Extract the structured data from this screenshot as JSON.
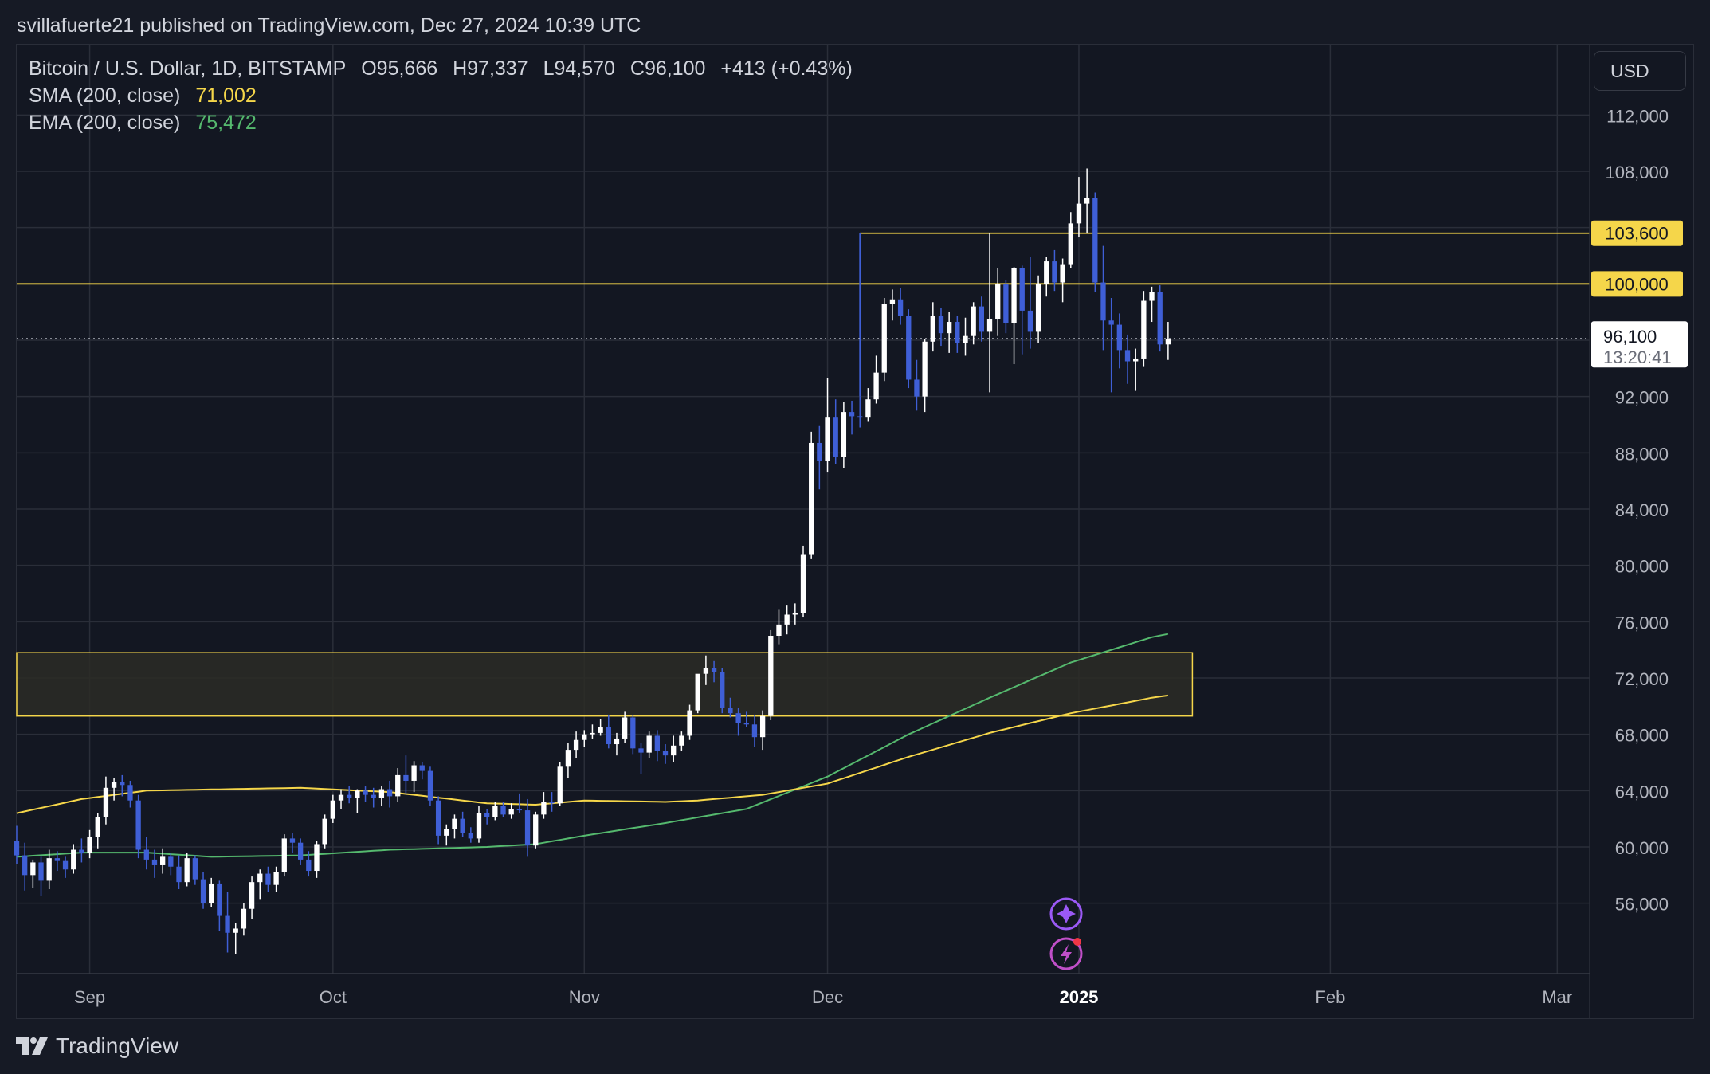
{
  "header": {
    "publisher_line": "svillafuerte21 published on TradingView.com, Dec 27, 2024 10:39 UTC"
  },
  "legend": {
    "symbol": "Bitcoin / U.S. Dollar, 1D, BITSTAMP",
    "open": "O95,666",
    "high": "H97,337",
    "low": "L94,570",
    "close": "C96,100",
    "change": "+413 (+0.43%)",
    "sma_label": "SMA (200, close)",
    "sma_value": "71,002",
    "ema_label": "EMA (200, close)",
    "ema_value": "75,472"
  },
  "currency_button": "USD",
  "price_axis": {
    "ticks": [
      "112,000",
      "108,000",
      "103,600",
      "100,000",
      "96,100",
      "92,000",
      "88,000",
      "84,000",
      "80,000",
      "76,000",
      "72,000",
      "68,000",
      "64,000",
      "60,000",
      "56,000"
    ],
    "tick_values": [
      112000,
      108000,
      104000,
      100000,
      96000,
      92000,
      88000,
      84000,
      80000,
      76000,
      72000,
      68000,
      64000,
      60000,
      56000
    ],
    "current_price_label": "96,100",
    "countdown": "13:20:41",
    "level_labels": [
      "103,600",
      "100,000"
    ]
  },
  "time_axis": {
    "labels": [
      "Sep",
      "Oct",
      "Nov",
      "Dec",
      "2025",
      "Feb",
      "Mar"
    ]
  },
  "colors": {
    "background": "#131722",
    "up_candle": "#ffffff",
    "down_candle": "#3f5fd6",
    "sma": "#f5d64a",
    "ema": "#55b96e",
    "level_line": "#f5d64a",
    "zone_fill": "#2b2b26",
    "grid": "#2a2e39"
  },
  "chart_data": {
    "type": "candlestick",
    "title": "Bitcoin / U.S. Dollar, 1D, BITSTAMP",
    "timeframe": "1D",
    "first_date": "2024-08-23",
    "last_date": "2024-12-27",
    "y_range": [
      51000,
      117000
    ],
    "x_range": [
      "2024-08-23",
      "2025-03-05"
    ],
    "levels": [
      103600,
      100000
    ],
    "current_price": 96100,
    "zone": {
      "low": 69300,
      "high": 73800,
      "until": "2025-01-15"
    },
    "ohlc": [
      [
        60400,
        61500,
        58800,
        59400
      ],
      [
        59400,
        60300,
        56900,
        58000
      ],
      [
        58000,
        59100,
        57100,
        58900
      ],
      [
        58900,
        59300,
        56500,
        57600
      ],
      [
        57600,
        59800,
        57000,
        59200
      ],
      [
        59200,
        59700,
        58300,
        59000
      ],
      [
        59000,
        59300,
        57800,
        58400
      ],
      [
        58400,
        60200,
        58100,
        59800
      ],
      [
        59800,
        60600,
        58900,
        59600
      ],
      [
        59600,
        61200,
        59200,
        60700
      ],
      [
        60700,
        62400,
        59900,
        62100
      ],
      [
        62100,
        65000,
        61600,
        64200
      ],
      [
        64200,
        64900,
        63300,
        64600
      ],
      [
        64600,
        65100,
        63600,
        64400
      ],
      [
        64400,
        64700,
        62800,
        63300
      ],
      [
        63300,
        63700,
        59200,
        59800
      ],
      [
        59800,
        60700,
        58400,
        59100
      ],
      [
        59100,
        59800,
        57800,
        58700
      ],
      [
        58700,
        59900,
        58100,
        59300
      ],
      [
        59300,
        59600,
        58000,
        58600
      ],
      [
        58600,
        59400,
        57000,
        57500
      ],
      [
        57500,
        59600,
        57200,
        59200
      ],
      [
        59200,
        59400,
        57300,
        57700
      ],
      [
        57700,
        58200,
        55600,
        56000
      ],
      [
        56000,
        57800,
        55700,
        57400
      ],
      [
        57400,
        57600,
        54000,
        55100
      ],
      [
        55100,
        56800,
        52500,
        53900
      ],
      [
        53900,
        54600,
        52400,
        54200
      ],
      [
        54200,
        56000,
        53700,
        55600
      ],
      [
        55600,
        57900,
        54900,
        57500
      ],
      [
        57500,
        58400,
        56300,
        58100
      ],
      [
        58100,
        58600,
        56800,
        57300
      ],
      [
        57300,
        58600,
        56800,
        58200
      ],
      [
        58200,
        60900,
        57900,
        60600
      ],
      [
        60600,
        61000,
        59600,
        60300
      ],
      [
        60300,
        60600,
        58700,
        59100
      ],
      [
        59100,
        59700,
        57900,
        58300
      ],
      [
        58300,
        60400,
        57800,
        60200
      ],
      [
        60200,
        62300,
        59900,
        62000
      ],
      [
        62000,
        63700,
        61700,
        63300
      ],
      [
        63300,
        64100,
        62700,
        63700
      ],
      [
        63700,
        64300,
        63100,
        63500
      ],
      [
        63500,
        64100,
        62400,
        64000
      ],
      [
        64000,
        64300,
        63200,
        63700
      ],
      [
        63700,
        64200,
        62800,
        63500
      ],
      [
        63500,
        64300,
        62900,
        64100
      ],
      [
        64100,
        64700,
        62800,
        63600
      ],
      [
        63600,
        65600,
        63200,
        65100
      ],
      [
        65100,
        66500,
        63800,
        64700
      ],
      [
        64700,
        66100,
        63900,
        65800
      ],
      [
        65800,
        66000,
        64800,
        65400
      ],
      [
        65400,
        65700,
        62900,
        63300
      ],
      [
        63300,
        63600,
        60200,
        60800
      ],
      [
        60800,
        61600,
        60100,
        61300
      ],
      [
        61300,
        62300,
        60600,
        62000
      ],
      [
        62000,
        62500,
        60700,
        61000
      ],
      [
        61000,
        61400,
        60300,
        60600
      ],
      [
        60600,
        62900,
        60300,
        62400
      ],
      [
        62400,
        62700,
        61600,
        62100
      ],
      [
        62100,
        63200,
        61900,
        62900
      ],
      [
        62900,
        63200,
        62100,
        62300
      ],
      [
        62300,
        63100,
        62000,
        62700
      ],
      [
        62700,
        63800,
        62400,
        62600
      ],
      [
        62600,
        63400,
        59300,
        60100
      ],
      [
        60100,
        62500,
        59900,
        62300
      ],
      [
        62300,
        63900,
        62000,
        63200
      ],
      [
        63200,
        63900,
        62500,
        63100
      ],
      [
        63100,
        66000,
        62900,
        65700
      ],
      [
        65700,
        67400,
        64900,
        66900
      ],
      [
        66900,
        68200,
        66300,
        67600
      ],
      [
        67600,
        68300,
        67100,
        68000
      ],
      [
        68000,
        68700,
        67700,
        68100
      ],
      [
        68100,
        69100,
        67900,
        68500
      ],
      [
        68500,
        69400,
        67000,
        67300
      ],
      [
        67300,
        68100,
        66500,
        67700
      ],
      [
        67700,
        69600,
        67400,
        69200
      ],
      [
        69200,
        69400,
        66600,
        67000
      ],
      [
        67000,
        67400,
        65200,
        66700
      ],
      [
        66700,
        68200,
        66300,
        67900
      ],
      [
        67900,
        68300,
        66100,
        66800
      ],
      [
        66800,
        67300,
        65900,
        66500
      ],
      [
        66500,
        67900,
        66000,
        67200
      ],
      [
        67200,
        68200,
        66800,
        67900
      ],
      [
        67900,
        70100,
        67600,
        69700
      ],
      [
        69700,
        71800,
        69500,
        72300
      ],
      [
        72300,
        73600,
        71500,
        72700
      ],
      [
        72700,
        73200,
        71700,
        72400
      ],
      [
        72400,
        72700,
        69500,
        69900
      ],
      [
        69900,
        70600,
        69200,
        69500
      ],
      [
        69500,
        69900,
        67900,
        68800
      ],
      [
        68800,
        69600,
        68500,
        68700
      ],
      [
        68700,
        69400,
        67100,
        67800
      ],
      [
        67800,
        69700,
        66900,
        69300
      ],
      [
        69300,
        75400,
        69000,
        75000
      ],
      [
        75000,
        76900,
        74400,
        75800
      ],
      [
        75800,
        77200,
        75100,
        76500
      ],
      [
        76500,
        77300,
        75800,
        76600
      ],
      [
        76600,
        81400,
        76300,
        80800
      ],
      [
        80800,
        89500,
        80500,
        88700
      ],
      [
        88700,
        89900,
        85400,
        87400
      ],
      [
        87400,
        93300,
        86600,
        90500
      ],
      [
        90500,
        91800,
        87200,
        87700
      ],
      [
        87700,
        91600,
        86900,
        90900
      ],
      [
        90900,
        91700,
        89300,
        90600
      ],
      [
        90600,
        92000,
        89800,
        90500
      ],
      [
        90500,
        92600,
        90200,
        91800
      ],
      [
        91800,
        94900,
        91500,
        93700
      ],
      [
        93700,
        99000,
        93100,
        98600
      ],
      [
        98600,
        99600,
        97400,
        98900
      ],
      [
        98900,
        99700,
        97100,
        97700
      ],
      [
        97700,
        98200,
        92600,
        93200
      ],
      [
        93200,
        94600,
        91000,
        92000
      ],
      [
        92000,
        96100,
        90900,
        95900
      ],
      [
        95900,
        98700,
        95200,
        97700
      ],
      [
        97700,
        98300,
        95600,
        96500
      ],
      [
        96500,
        98000,
        95100,
        97300
      ],
      [
        97300,
        97700,
        95100,
        95800
      ],
      [
        95800,
        97600,
        94900,
        96300
      ],
      [
        96300,
        98700,
        95700,
        98400
      ],
      [
        98400,
        99100,
        95900,
        96600
      ],
      [
        96600,
        103600,
        92300,
        97500
      ],
      [
        97500,
        101100,
        96300,
        100000
      ],
      [
        100000,
        100300,
        96500,
        97200
      ],
      [
        97200,
        101200,
        94300,
        101100
      ],
      [
        101100,
        101300,
        95000,
        98100
      ],
      [
        98100,
        101900,
        95400,
        96600
      ],
      [
        96600,
        100600,
        95800,
        100000
      ],
      [
        100000,
        101900,
        99100,
        101600
      ],
      [
        101600,
        102400,
        99500,
        100100
      ],
      [
        100100,
        101800,
        98700,
        101400
      ],
      [
        101400,
        105100,
        101100,
        104300
      ],
      [
        104300,
        107600,
        103300,
        105700
      ],
      [
        105700,
        108200,
        103600,
        106100
      ],
      [
        106100,
        106500,
        99400,
        100100
      ],
      [
        100100,
        102700,
        95300,
        97400
      ],
      [
        97400,
        99000,
        92300,
        97100
      ],
      [
        97100,
        97900,
        94000,
        95300
      ],
      [
        95300,
        96400,
        92900,
        94500
      ],
      [
        94500,
        95400,
        92400,
        94700
      ],
      [
        94700,
        99500,
        94100,
        98800
      ],
      [
        98800,
        99800,
        97300,
        99400
      ],
      [
        99400,
        99900,
        95200,
        95700
      ],
      [
        95700,
        97300,
        94600,
        96100
      ]
    ],
    "sma_200": {
      "first_date": "2024-08-23",
      "last_date": "2024-12-27",
      "anchors": [
        [
          0,
          62400
        ],
        [
          8,
          63400
        ],
        [
          16,
          64000
        ],
        [
          35,
          64200
        ],
        [
          46,
          63900
        ],
        [
          58,
          63100
        ],
        [
          64,
          63000
        ],
        [
          70,
          63300
        ],
        [
          80,
          63200
        ],
        [
          84,
          63300
        ],
        [
          92,
          63700
        ],
        [
          100,
          64500
        ],
        [
          110,
          66400
        ],
        [
          120,
          68100
        ],
        [
          130,
          69500
        ],
        [
          140,
          70600
        ],
        [
          145,
          71002
        ]
      ]
    },
    "ema_200": {
      "first_date": "2024-08-23",
      "last_date": "2024-12-27",
      "anchors": [
        [
          0,
          59300
        ],
        [
          8,
          59600
        ],
        [
          16,
          59600
        ],
        [
          24,
          59300
        ],
        [
          35,
          59400
        ],
        [
          46,
          59800
        ],
        [
          58,
          60000
        ],
        [
          64,
          60200
        ],
        [
          70,
          60800
        ],
        [
          80,
          61700
        ],
        [
          90,
          62700
        ],
        [
          100,
          65000
        ],
        [
          110,
          68000
        ],
        [
          120,
          70600
        ],
        [
          130,
          73100
        ],
        [
          140,
          74900
        ],
        [
          145,
          75472
        ]
      ]
    }
  }
}
